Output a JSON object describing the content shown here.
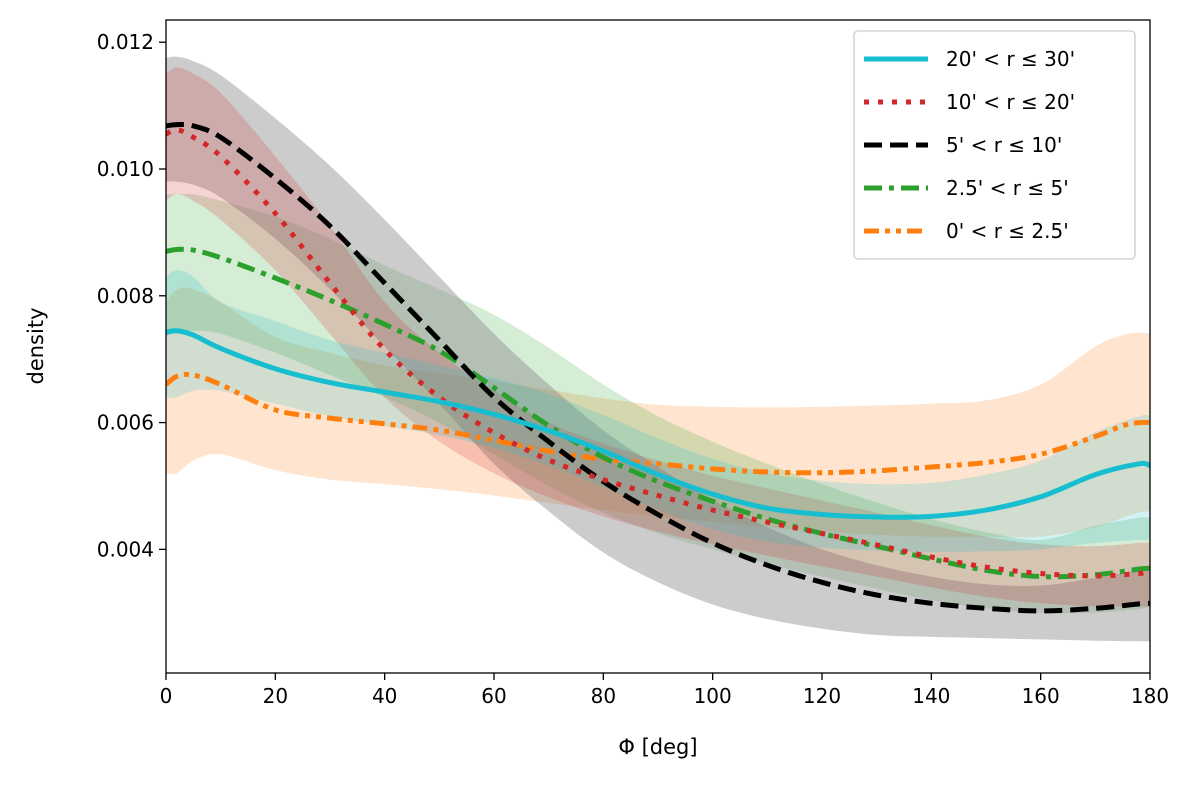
{
  "chart_data": {
    "type": "line",
    "title": "",
    "xlabel": "Φ [deg]",
    "ylabel": "density",
    "xlim": [
      0,
      180
    ],
    "ylim": [
      0.00205,
      0.01235
    ],
    "xticks": [
      0,
      20,
      40,
      60,
      80,
      100,
      120,
      140,
      160,
      180
    ],
    "yticks": [
      0.004,
      0.006,
      0.008,
      0.01,
      0.012
    ],
    "xtick_labels": [
      "0",
      "20",
      "40",
      "60",
      "80",
      "100",
      "120",
      "140",
      "160",
      "180"
    ],
    "ytick_labels": [
      "0.004",
      "0.006",
      "0.008",
      "0.010",
      "0.012"
    ],
    "grid": false,
    "legend_position": "top-right",
    "series": [
      {
        "name": "0' < r ≤ 2.5'",
        "color": "#ff7f0e",
        "style": "dashdotdot",
        "x": [
          0,
          2,
          5,
          10,
          20,
          30,
          40,
          50,
          60,
          70,
          80,
          90,
          100,
          110,
          120,
          130,
          140,
          150,
          160,
          170,
          175,
          178,
          180
        ],
        "values": [
          0.0066,
          0.00673,
          0.00675,
          0.0066,
          0.0062,
          0.00607,
          0.00598,
          0.00588,
          0.00572,
          0.00555,
          0.00542,
          0.00535,
          0.00527,
          0.00522,
          0.00521,
          0.00524,
          0.0053,
          0.00537,
          0.0055,
          0.00578,
          0.00595,
          0.006,
          0.006
        ],
        "lower": [
          0.0052,
          0.0052,
          0.0054,
          0.0055,
          0.00525,
          0.0051,
          0.00503,
          0.00495,
          0.00485,
          0.00473,
          0.00462,
          0.00452,
          0.00443,
          0.00435,
          0.00428,
          0.00423,
          0.0042,
          0.0042,
          0.0042,
          0.00435,
          0.0045,
          0.00458,
          0.0046
        ],
        "upper": [
          0.0079,
          0.0081,
          0.0081,
          0.0079,
          0.00735,
          0.0071,
          0.0069,
          0.00678,
          0.00665,
          0.00652,
          0.00638,
          0.00628,
          0.00625,
          0.00624,
          0.00625,
          0.00627,
          0.0063,
          0.00635,
          0.0066,
          0.0072,
          0.00738,
          0.00742,
          0.0074
        ]
      },
      {
        "name": "2.5' < r ≤ 5'",
        "color": "#2ca02c",
        "style": "dashdot",
        "x": [
          0,
          2,
          5,
          10,
          20,
          30,
          40,
          50,
          60,
          70,
          80,
          90,
          100,
          110,
          120,
          130,
          140,
          150,
          160,
          170,
          178,
          180
        ],
        "values": [
          0.0087,
          0.00873,
          0.00872,
          0.0086,
          0.00828,
          0.00793,
          0.00755,
          0.00713,
          0.00655,
          0.00595,
          0.00545,
          0.00507,
          0.00476,
          0.00448,
          0.00425,
          0.00405,
          0.00385,
          0.00367,
          0.00357,
          0.0036,
          0.00369,
          0.0037
        ],
        "lower": [
          0.0074,
          0.0074,
          0.00745,
          0.0074,
          0.0071,
          0.00675,
          0.0064,
          0.006,
          0.0055,
          0.005,
          0.00458,
          0.00425,
          0.004,
          0.00377,
          0.00357,
          0.00338,
          0.0032,
          0.00307,
          0.003,
          0.003,
          0.00306,
          0.0031
        ],
        "upper": [
          0.0096,
          0.0096,
          0.0096,
          0.0095,
          0.00925,
          0.0089,
          0.00848,
          0.0081,
          0.0077,
          0.00718,
          0.0066,
          0.0061,
          0.0057,
          0.00535,
          0.00503,
          0.00474,
          0.00448,
          0.00427,
          0.00415,
          0.00437,
          0.0045,
          0.0045
        ]
      },
      {
        "name": "5' < r ≤ 10'",
        "color": "#000000",
        "style": "dashed",
        "x": [
          0,
          2,
          5,
          10,
          20,
          30,
          40,
          50,
          60,
          70,
          80,
          90,
          100,
          110,
          120,
          130,
          140,
          150,
          160,
          170,
          178,
          180
        ],
        "values": [
          0.01068,
          0.0107,
          0.01068,
          0.0105,
          0.00985,
          0.0091,
          0.0082,
          0.0073,
          0.0064,
          0.0057,
          0.00507,
          0.00455,
          0.0041,
          0.00375,
          0.00348,
          0.00328,
          0.00315,
          0.00307,
          0.00303,
          0.00307,
          0.00314,
          0.00315
        ],
        "lower": [
          0.0098,
          0.0098,
          0.00975,
          0.00955,
          0.0089,
          0.0081,
          0.0072,
          0.0063,
          0.00535,
          0.0046,
          0.00395,
          0.00348,
          0.00313,
          0.0029,
          0.00275,
          0.00265,
          0.00262,
          0.0026,
          0.00258,
          0.00256,
          0.00255,
          0.00255
        ],
        "upper": [
          0.01175,
          0.01177,
          0.0117,
          0.01148,
          0.0108,
          0.01005,
          0.0092,
          0.0083,
          0.0074,
          0.0066,
          0.00588,
          0.0053,
          0.00478,
          0.00435,
          0.004,
          0.00375,
          0.00357,
          0.00345,
          0.00343,
          0.00355,
          0.00368,
          0.0037
        ]
      },
      {
        "name": "10' < r ≤ 20'",
        "color": "#d62728",
        "style": "dotted",
        "x": [
          0,
          2,
          5,
          10,
          20,
          30,
          40,
          50,
          60,
          70,
          80,
          90,
          100,
          110,
          120,
          130,
          140,
          150,
          160,
          170,
          178,
          180
        ],
        "values": [
          0.01055,
          0.01062,
          0.0105,
          0.0102,
          0.0093,
          0.0082,
          0.00715,
          0.0064,
          0.00584,
          0.00541,
          0.0051,
          0.00485,
          0.00462,
          0.00443,
          0.00425,
          0.00407,
          0.00388,
          0.00372,
          0.00362,
          0.00358,
          0.00362,
          0.00365
        ],
        "lower": [
          0.0095,
          0.0096,
          0.0095,
          0.0092,
          0.0084,
          0.0074,
          0.0064,
          0.0057,
          0.0052,
          0.00482,
          0.00452,
          0.00428,
          0.00408,
          0.0039,
          0.00373,
          0.00357,
          0.0034,
          0.00325,
          0.00315,
          0.0031,
          0.0031,
          0.0031
        ],
        "upper": [
          0.0115,
          0.0116,
          0.0115,
          0.0112,
          0.0102,
          0.0091,
          0.0079,
          0.0071,
          0.0065,
          0.006,
          0.00567,
          0.0054,
          0.00516,
          0.00496,
          0.00477,
          0.00458,
          0.00438,
          0.0042,
          0.00408,
          0.00405,
          0.0041,
          0.0041
        ]
      },
      {
        "name": "20' < r ≤ 30'",
        "color": "#17becf",
        "style": "solid",
        "x": [
          0,
          2,
          5,
          10,
          20,
          30,
          40,
          50,
          60,
          70,
          80,
          90,
          100,
          110,
          120,
          130,
          140,
          150,
          160,
          170,
          178,
          180
        ],
        "values": [
          0.00742,
          0.00745,
          0.00738,
          0.00717,
          0.00685,
          0.00663,
          0.00648,
          0.00633,
          0.00613,
          0.00587,
          0.00555,
          0.00518,
          0.00487,
          0.00465,
          0.00455,
          0.00451,
          0.00452,
          0.00462,
          0.00483,
          0.00518,
          0.00535,
          0.00532
        ],
        "lower": [
          0.0064,
          0.0064,
          0.0065,
          0.0065,
          0.0063,
          0.0061,
          0.00595,
          0.0058,
          0.0056,
          0.00532,
          0.00498,
          0.00462,
          0.00432,
          0.00412,
          0.00403,
          0.00398,
          0.00396,
          0.00397,
          0.004,
          0.0041,
          0.00415,
          0.00415
        ],
        "upper": [
          0.0083,
          0.0084,
          0.0083,
          0.0079,
          0.0076,
          0.0073,
          0.0071,
          0.0069,
          0.0067,
          0.00645,
          0.00612,
          0.00575,
          0.00543,
          0.0052,
          0.00508,
          0.00503,
          0.00505,
          0.00518,
          0.0054,
          0.00585,
          0.0061,
          0.0061
        ]
      }
    ],
    "legend_order": [
      "20' < r ≤ 30'",
      "10' < r ≤ 20'",
      "5' < r ≤ 10'",
      "2.5' < r ≤ 5'",
      "0' < r ≤ 2.5'"
    ]
  }
}
